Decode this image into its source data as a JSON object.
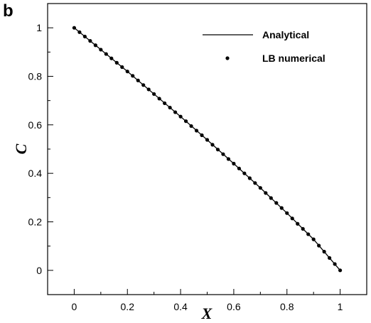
{
  "panel_label": "b",
  "chart_data": {
    "type": "line",
    "title": "",
    "xlabel": "X",
    "ylabel": "C",
    "xlim": [
      -0.1,
      1.1
    ],
    "ylim": [
      -0.1,
      1.1
    ],
    "x_ticks": [
      0,
      0.2,
      0.4,
      0.6,
      0.8,
      1
    ],
    "x_tick_labels": [
      "0",
      "0.2",
      "0.4",
      "0.6",
      "0.8",
      "1"
    ],
    "y_ticks": [
      0,
      0.2,
      0.4,
      0.6,
      0.8,
      1
    ],
    "y_tick_labels": [
      "0",
      "0.2",
      "0.4",
      "0.6",
      "0.8",
      "1"
    ],
    "grid": false,
    "legend_position": "top-right",
    "colors": {
      "line": "#000000",
      "points": "#000000"
    },
    "series": [
      {
        "name": "Analytical",
        "kind": "line",
        "x": [
          0,
          0.1,
          0.2,
          0.3,
          0.4,
          0.5,
          0.6,
          0.7,
          0.8,
          0.9,
          1.0
        ],
        "y": [
          1.0,
          0.91,
          0.82,
          0.727,
          0.634,
          0.538,
          0.44,
          0.34,
          0.236,
          0.128,
          0.0
        ]
      },
      {
        "name": "LB numerical",
        "kind": "scatter",
        "x": [
          0,
          0.02,
          0.04,
          0.06,
          0.08,
          0.1,
          0.12,
          0.14,
          0.16,
          0.18,
          0.2,
          0.22,
          0.24,
          0.26,
          0.28,
          0.3,
          0.32,
          0.34,
          0.36,
          0.38,
          0.4,
          0.42,
          0.44,
          0.46,
          0.48,
          0.5,
          0.52,
          0.54,
          0.56,
          0.58,
          0.6,
          0.62,
          0.64,
          0.66,
          0.68,
          0.7,
          0.72,
          0.74,
          0.76,
          0.78,
          0.8,
          0.82,
          0.84,
          0.86,
          0.88,
          0.9,
          0.92,
          0.94,
          0.96,
          0.98,
          1.0
        ],
        "y": [
          1.0,
          0.982,
          0.964,
          0.946,
          0.928,
          0.91,
          0.892,
          0.874,
          0.856,
          0.838,
          0.82,
          0.802,
          0.783,
          0.764,
          0.746,
          0.727,
          0.708,
          0.689,
          0.671,
          0.652,
          0.634,
          0.615,
          0.595,
          0.576,
          0.557,
          0.538,
          0.518,
          0.498,
          0.479,
          0.459,
          0.44,
          0.42,
          0.4,
          0.38,
          0.36,
          0.34,
          0.319,
          0.298,
          0.278,
          0.257,
          0.236,
          0.214,
          0.192,
          0.171,
          0.149,
          0.128,
          0.102,
          0.077,
          0.051,
          0.026,
          0.0
        ]
      }
    ]
  }
}
